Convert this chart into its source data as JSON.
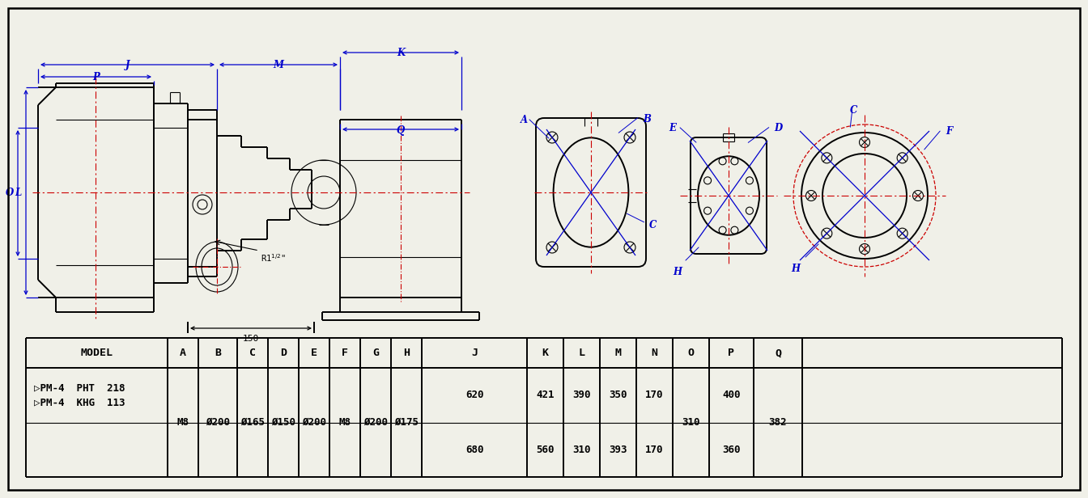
{
  "bg_color": "#f0f0e8",
  "line_color": "#000000",
  "blue_color": "#0000cc",
  "red_color": "#cc0000",
  "border": [
    10,
    10,
    1324,
    596
  ],
  "table": {
    "headers": [
      "MODEL",
      "A",
      "B",
      "C",
      "D",
      "E",
      "F",
      "G",
      "H",
      "J",
      "K",
      "L",
      "M",
      "N",
      "O",
      "P",
      "Q"
    ],
    "row1_model": "▷PM-4  PHT  218",
    "row2_model": "▷PM-4  KHG  113",
    "shared_A": "M8",
    "shared_B": "Ø200",
    "shared_C": "Ø165",
    "shared_D": "Ø150",
    "shared_E": "Ø200",
    "shared_F": "M8",
    "shared_G": "Ø200",
    "shared_H": "Ø175",
    "shared_O": "310",
    "shared_Q": "382",
    "r1_J": "620",
    "r1_K": "421",
    "r1_L": "390",
    "r1_M": "350",
    "r1_N": "170",
    "r1_P": "400",
    "r2_J": "680",
    "r2_K": "560",
    "r2_L": "310",
    "r2_M": "393",
    "r2_N": "170",
    "r2_P": "360"
  }
}
